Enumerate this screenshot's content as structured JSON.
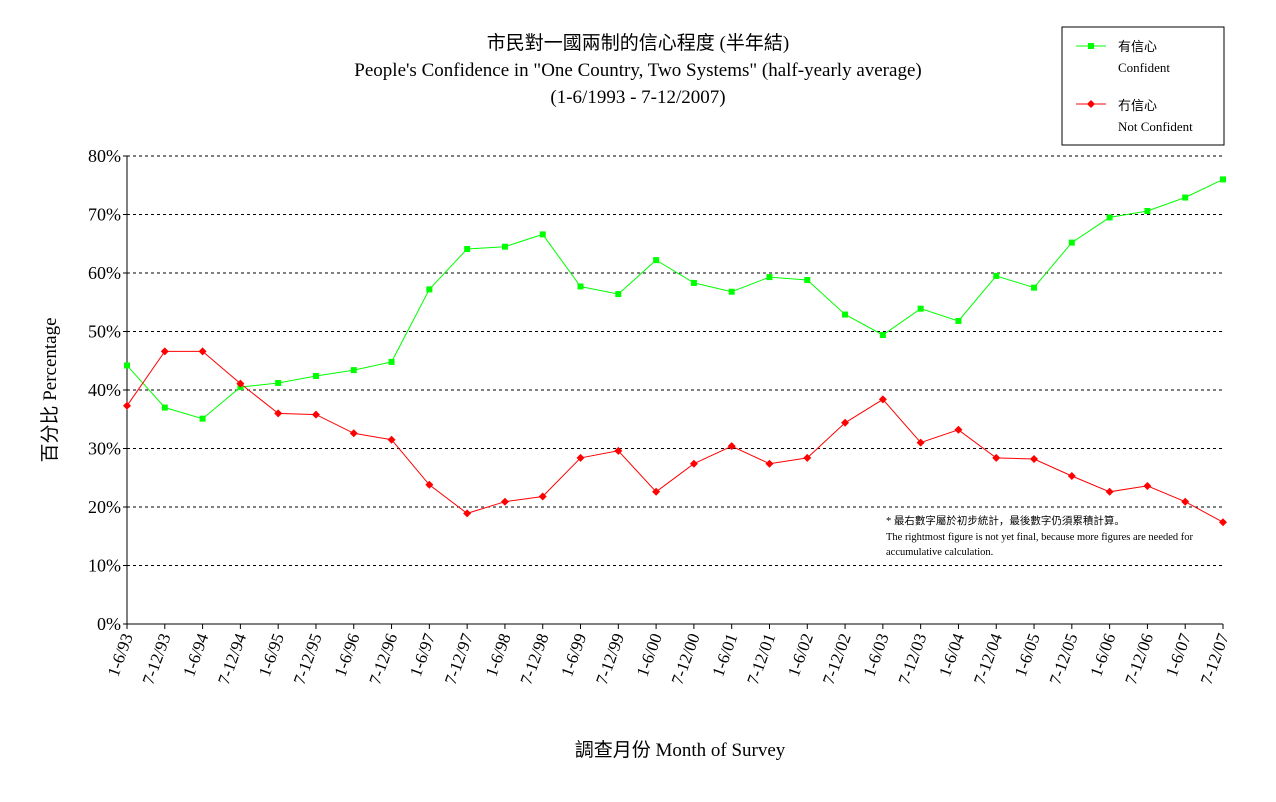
{
  "chart_data": {
    "type": "line",
    "title": "市民對一國兩制的信心程度 (半年結)",
    "subtitle": "People's Confidence in \"One Country, Two Systems\"  (half-yearly average)",
    "subtitle2": "(1-6/1993 - 7-12/2007)",
    "xlabel": "調查月份 Month of Survey",
    "ylabel": "百分比 Percentage",
    "ylim": [
      0,
      80
    ],
    "yticks": [
      "0%",
      "10%",
      "20%",
      "30%",
      "40%",
      "50%",
      "60%",
      "70%",
      "80%"
    ],
    "grid": true,
    "legend_position": "top-right",
    "categories": [
      "1-6/93",
      "7-12/93",
      "1-6/94",
      "7-12/94",
      "1-6/95",
      "7-12/95",
      "1-6/96",
      "7-12/96",
      "1-6/97",
      "7-12/97",
      "1-6/98",
      "7-12/98",
      "1-6/99",
      "7-12/99",
      "1-6/00",
      "7-12/00",
      "1-6/01",
      "7-12/01",
      "1-6/02",
      "7-12/02",
      "1-6/03",
      "7-12/03",
      "1-6/04",
      "7-12/04",
      "1-6/05",
      "7-12/05",
      "1-6/06",
      "7-12/06",
      "1-6/07",
      "7-12/07"
    ],
    "series": [
      {
        "name": "有信心",
        "name_en": "Confident",
        "color": "#00ff00",
        "marker": "square",
        "values": [
          44.2,
          37.0,
          35.1,
          40.5,
          41.2,
          42.4,
          43.4,
          44.8,
          57.2,
          64.1,
          64.5,
          66.6,
          57.7,
          56.4,
          62.2,
          58.3,
          56.8,
          59.3,
          58.8,
          52.9,
          49.4,
          53.9,
          51.8,
          59.5,
          57.5,
          65.2,
          69.5,
          70.6,
          72.9,
          76.0
        ]
      },
      {
        "name": "冇信心",
        "name_en": "Not Confident",
        "color": "#ff0000",
        "marker": "diamond",
        "values": [
          37.3,
          46.6,
          46.6,
          41.1,
          36.0,
          35.8,
          32.6,
          31.5,
          23.8,
          18.9,
          20.9,
          21.8,
          28.4,
          29.6,
          22.6,
          27.4,
          30.4,
          27.4,
          28.4,
          34.4,
          38.4,
          31.0,
          33.2,
          28.4,
          28.2,
          25.3,
          22.6,
          23.6,
          20.9,
          17.4
        ]
      }
    ],
    "annotation": {
      "line1": "* 最右數字屬於初步統計，最後數字仍須累積計算。",
      "line2": "The rightmost figure is not yet final, because more figures are needed for",
      "line3": "accumulative calculation."
    }
  }
}
